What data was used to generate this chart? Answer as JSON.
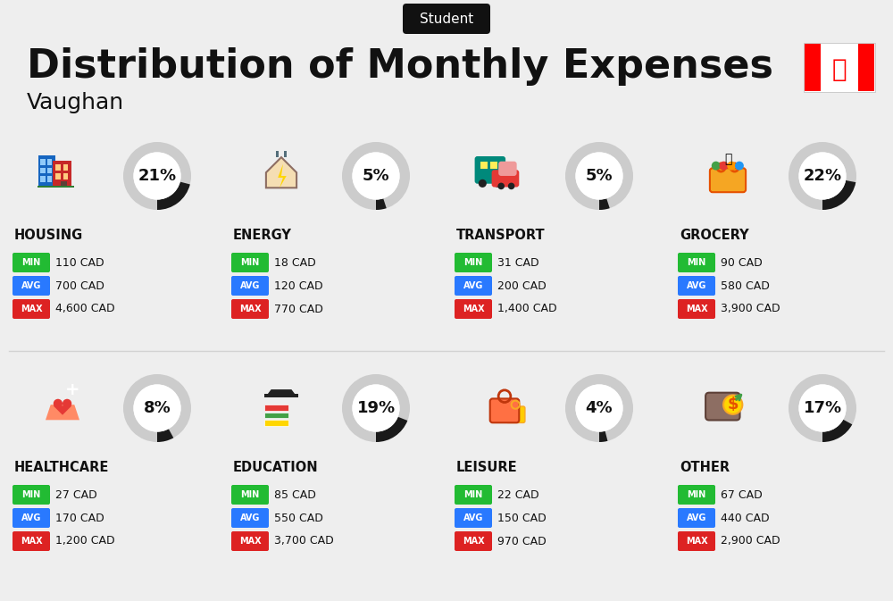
{
  "title": "Distribution of Monthly Expenses",
  "subtitle": "Student",
  "city": "Vaughan",
  "bg_color": "#eeeeee",
  "categories": [
    {
      "name": "HOUSING",
      "pct": 21,
      "min_val": "110 CAD",
      "avg_val": "700 CAD",
      "max_val": "4,600 CAD",
      "row": 0,
      "col": 0
    },
    {
      "name": "ENERGY",
      "pct": 5,
      "min_val": "18 CAD",
      "avg_val": "120 CAD",
      "max_val": "770 CAD",
      "row": 0,
      "col": 1
    },
    {
      "name": "TRANSPORT",
      "pct": 5,
      "min_val": "31 CAD",
      "avg_val": "200 CAD",
      "max_val": "1,400 CAD",
      "row": 0,
      "col": 2
    },
    {
      "name": "GROCERY",
      "pct": 22,
      "min_val": "90 CAD",
      "avg_val": "580 CAD",
      "max_val": "3,900 CAD",
      "row": 0,
      "col": 3
    },
    {
      "name": "HEALTHCARE",
      "pct": 8,
      "min_val": "27 CAD",
      "avg_val": "170 CAD",
      "max_val": "1,200 CAD",
      "row": 1,
      "col": 0
    },
    {
      "name": "EDUCATION",
      "pct": 19,
      "min_val": "85 CAD",
      "avg_val": "550 CAD",
      "max_val": "3,700 CAD",
      "row": 1,
      "col": 1
    },
    {
      "name": "LEISURE",
      "pct": 4,
      "min_val": "22 CAD",
      "avg_val": "150 CAD",
      "max_val": "970 CAD",
      "row": 1,
      "col": 2
    },
    {
      "name": "OTHER",
      "pct": 17,
      "min_val": "67 CAD",
      "avg_val": "440 CAD",
      "max_val": "2,900 CAD",
      "row": 1,
      "col": 3
    }
  ],
  "min_color": "#22bb33",
  "avg_color": "#2979ff",
  "max_color": "#dd2222",
  "text_color": "#111111",
  "donut_dark": "#1a1a1a",
  "donut_light": "#cccccc",
  "flag_red": "#FF0000"
}
